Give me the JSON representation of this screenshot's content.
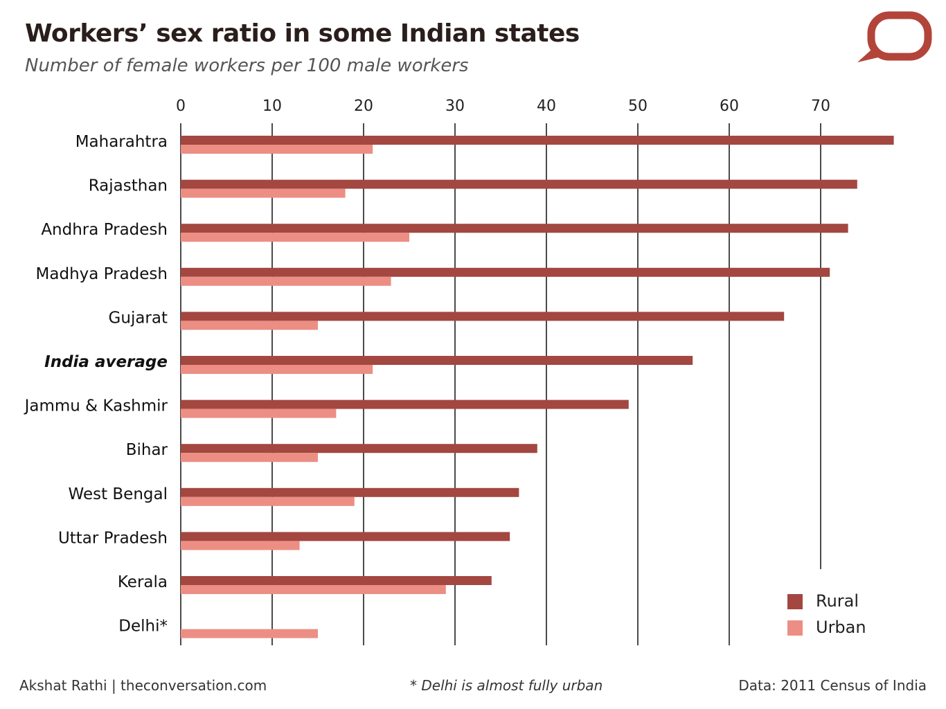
{
  "title": "Workers’ sex ratio in some Indian states",
  "subtitle": "Number of female workers per 100 male workers",
  "footer": {
    "credit": "Akshat Rathi | theconversation.com",
    "note": "* Delhi is almost fully urban",
    "source": "Data: 2011 Census of India"
  },
  "logo_icon": "speech-bubble-logo-icon",
  "colors": {
    "rural": "#a34740",
    "urban": "#ec8e84",
    "gridline": "#4a4a4a",
    "logo": "#b3443a"
  },
  "chart_data": {
    "type": "bar",
    "orientation": "horizontal",
    "categories": [
      "Maharahtra",
      "Rajasthan",
      "Andhra Pradesh",
      "Madhya Pradesh",
      "Gujarat",
      "India average",
      "Jammu & Kashmir",
      "Bihar",
      "West Bengal",
      "Uttar Pradesh",
      "Kerala",
      "Delhi*"
    ],
    "highlight_category": "India average",
    "series": [
      {
        "name": "Rural",
        "values": [
          78,
          74,
          73,
          71,
          66,
          56,
          49,
          39,
          37,
          36,
          34,
          null
        ]
      },
      {
        "name": "Urban",
        "values": [
          21,
          18,
          25,
          23,
          15,
          21,
          17,
          15,
          19,
          13,
          29,
          15
        ]
      }
    ],
    "xlim": [
      0,
      78
    ],
    "xticks": [
      "0",
      "10",
      "20",
      "30",
      "40",
      "50",
      "60",
      "70"
    ],
    "axis_position": "top",
    "grid": true,
    "legend_position": "bottom-right",
    "title": "Workers’ sex ratio in some Indian states",
    "xlabel": "",
    "ylabel": ""
  }
}
